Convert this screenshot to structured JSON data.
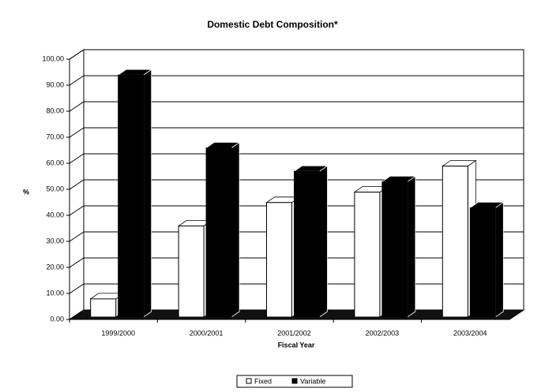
{
  "chart_data": {
    "type": "bar3d",
    "title": "Domestic Debt Composition*",
    "ylabel": "%",
    "xlabel": "Fiscal Year",
    "categories": [
      "1999/2000",
      "2000/2001",
      "2001/2002",
      "2002/2003",
      "2003/2004"
    ],
    "series": [
      {
        "name": "Fixed",
        "color": "#ffffff",
        "values": [
          7,
          35,
          44,
          48,
          58
        ]
      },
      {
        "name": "Variable",
        "color": "#000000",
        "values": [
          93,
          65,
          56,
          52,
          42
        ]
      }
    ],
    "ylim": [
      0,
      100
    ],
    "yticks": [
      {
        "value": 0,
        "label": "0.00"
      },
      {
        "value": 10,
        "label": "10.00"
      },
      {
        "value": 20,
        "label": "20.00"
      },
      {
        "value": 30,
        "label": "30.00"
      },
      {
        "value": 40,
        "label": "40.00"
      },
      {
        "value": 50,
        "label": "50.00"
      },
      {
        "value": 60,
        "label": "60.00"
      },
      {
        "value": 70,
        "label": "70.00"
      },
      {
        "value": 80,
        "label": "80.00"
      },
      {
        "value": 90,
        "label": "90.00"
      },
      {
        "value": 100,
        "label": "100.00"
      }
    ],
    "grid": true,
    "legend": "bottom"
  }
}
